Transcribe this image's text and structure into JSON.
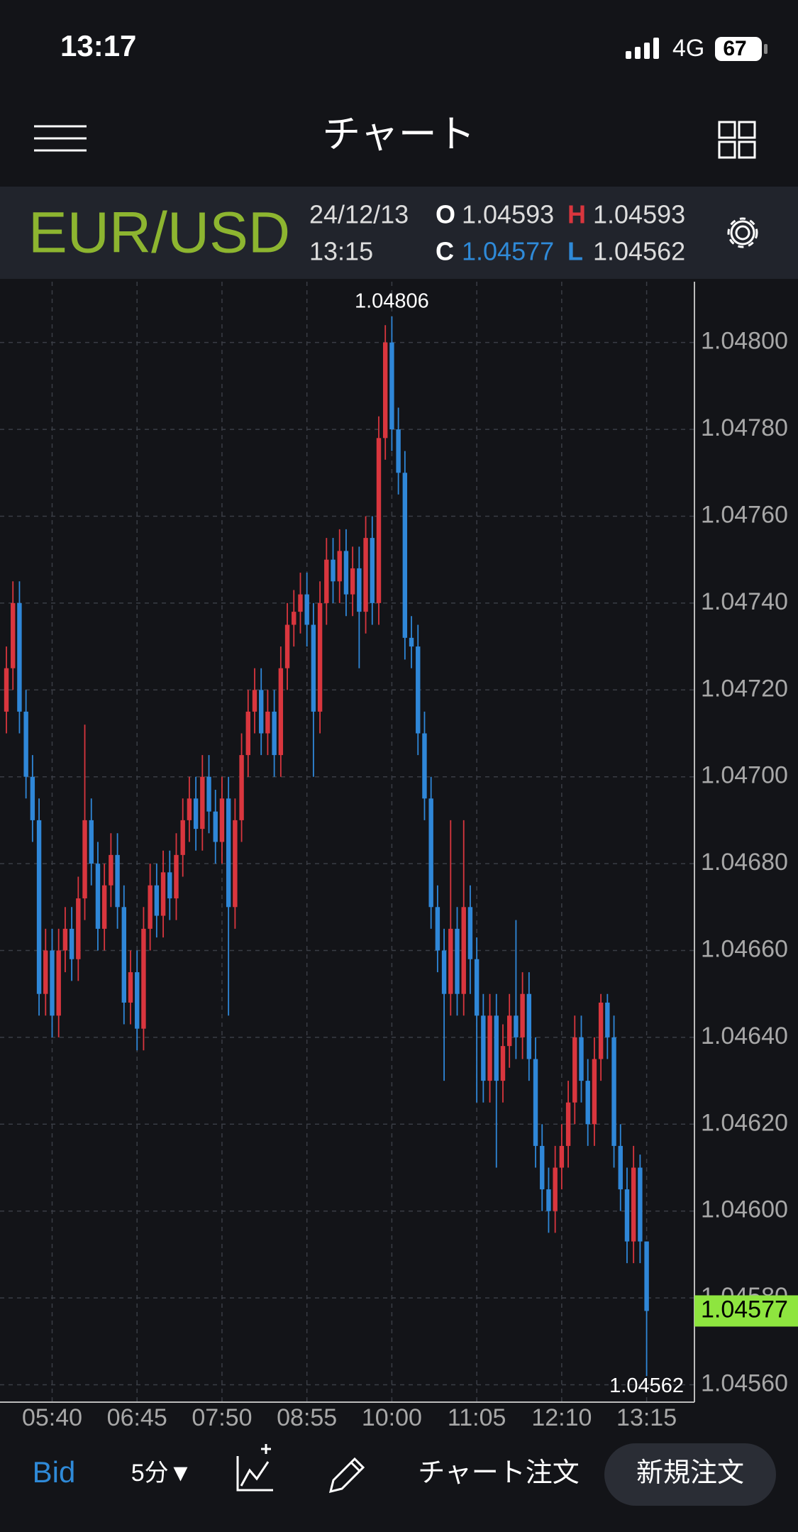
{
  "status_bar": {
    "time": "13:17",
    "network": "4G",
    "battery": "67"
  },
  "nav": {
    "title": "チャート"
  },
  "symbol_bar": {
    "pair": "EUR/USD",
    "date": "24/12/13",
    "labels": {
      "open": "O",
      "high": "H",
      "close": "C",
      "low": "L"
    }
  },
  "chart_data": {
    "type": "candlestick",
    "up_color": "#d9363e",
    "down_color": "#2f87d8",
    "grid": true,
    "last_price_color": "#8ee53f",
    "x": [
      "05:05",
      "05:10",
      "05:15",
      "05:20",
      "05:25",
      "05:30",
      "05:35",
      "05:40",
      "05:45",
      "05:50",
      "05:55",
      "06:00",
      "06:05",
      "06:10",
      "06:15",
      "06:20",
      "06:25",
      "06:30",
      "06:35",
      "06:40",
      "06:45",
      "06:50",
      "06:55",
      "07:00",
      "07:05",
      "07:10",
      "07:15",
      "07:20",
      "07:25",
      "07:30",
      "07:35",
      "07:40",
      "07:45",
      "07:50",
      "07:55",
      "08:00",
      "08:05",
      "08:10",
      "08:15",
      "08:20",
      "08:25",
      "08:30",
      "08:35",
      "08:40",
      "08:45",
      "08:50",
      "08:55",
      "09:00",
      "09:05",
      "09:10",
      "09:15",
      "09:20",
      "09:25",
      "09:30",
      "09:35",
      "09:40",
      "09:45",
      "09:50",
      "09:55",
      "10:00",
      "10:05",
      "10:10",
      "10:15",
      "10:20",
      "10:25",
      "10:30",
      "10:35",
      "10:40",
      "10:45",
      "10:50",
      "10:55",
      "11:00",
      "11:05",
      "11:10",
      "11:15",
      "11:20",
      "11:25",
      "11:30",
      "11:35",
      "11:40",
      "11:45",
      "11:50",
      "11:55",
      "12:00",
      "12:05",
      "12:10",
      "12:15",
      "12:20",
      "12:25",
      "12:30",
      "12:35",
      "12:40",
      "12:45",
      "12:50",
      "12:55",
      "13:00",
      "13:05",
      "13:10",
      "13:15"
    ],
    "open": [
      1.04715,
      1.04725,
      1.0474,
      1.04715,
      1.047,
      1.0469,
      1.0465,
      1.0466,
      1.04645,
      1.0466,
      1.04665,
      1.04658,
      1.04672,
      1.0469,
      1.0468,
      1.04665,
      1.04675,
      1.04682,
      1.0467,
      1.04648,
      1.04655,
      1.04642,
      1.04665,
      1.04675,
      1.04668,
      1.04678,
      1.04672,
      1.04682,
      1.0469,
      1.04695,
      1.04688,
      1.047,
      1.04692,
      1.04685,
      1.04695,
      1.0467,
      1.0469,
      1.04705,
      1.04715,
      1.0472,
      1.0471,
      1.04715,
      1.04705,
      1.04725,
      1.04735,
      1.04738,
      1.04742,
      1.04735,
      1.04715,
      1.0474,
      1.0475,
      1.04745,
      1.04752,
      1.04742,
      1.04748,
      1.04738,
      1.04755,
      1.0474,
      1.04778,
      1.048,
      1.0478,
      1.0477,
      1.04732,
      1.0473,
      1.0471,
      1.04695,
      1.0467,
      1.0466,
      1.0465,
      1.04665,
      1.0465,
      1.0467,
      1.04658,
      1.04645,
      1.0463,
      1.04645,
      1.0463,
      1.04638,
      1.04645,
      1.0464,
      1.0465,
      1.04635,
      1.04615,
      1.04605,
      1.046,
      1.0461,
      1.04615,
      1.04625,
      1.0464,
      1.0463,
      1.0462,
      1.04635,
      1.04648,
      1.0464,
      1.04615,
      1.04605,
      1.04593,
      1.0461,
      1.04593
    ],
    "high": [
      1.0473,
      1.04745,
      1.04745,
      1.0472,
      1.04705,
      1.04695,
      1.04665,
      1.04665,
      1.04665,
      1.0467,
      1.0467,
      1.04677,
      1.04712,
      1.04695,
      1.04685,
      1.0468,
      1.04687,
      1.04687,
      1.04675,
      1.0466,
      1.0466,
      1.0467,
      1.0468,
      1.0468,
      1.04683,
      1.04683,
      1.04687,
      1.04695,
      1.047,
      1.047,
      1.04705,
      1.04705,
      1.04697,
      1.047,
      1.047,
      1.04695,
      1.0471,
      1.0472,
      1.04725,
      1.04725,
      1.0472,
      1.0472,
      1.0473,
      1.0474,
      1.04743,
      1.04747,
      1.04747,
      1.0474,
      1.04745,
      1.04755,
      1.04755,
      1.04757,
      1.04757,
      1.04753,
      1.04753,
      1.0476,
      1.0476,
      1.04783,
      1.04804,
      1.04806,
      1.04785,
      1.04775,
      1.04737,
      1.04735,
      1.04715,
      1.047,
      1.04675,
      1.04665,
      1.0469,
      1.0467,
      1.0469,
      1.04675,
      1.04663,
      1.0465,
      1.0465,
      1.0465,
      1.04643,
      1.0465,
      1.04667,
      1.04655,
      1.04655,
      1.0464,
      1.0462,
      1.0461,
      1.04615,
      1.0462,
      1.0463,
      1.04645,
      1.04645,
      1.04635,
      1.0464,
      1.0465,
      1.0465,
      1.04645,
      1.0462,
      1.0461,
      1.04615,
      1.04613,
      1.04593
    ],
    "low": [
      1.0471,
      1.0472,
      1.0471,
      1.04695,
      1.04685,
      1.04645,
      1.04645,
      1.0464,
      1.0464,
      1.04655,
      1.04653,
      1.04653,
      1.04667,
      1.04675,
      1.0466,
      1.0466,
      1.0467,
      1.04665,
      1.04643,
      1.04643,
      1.04637,
      1.04637,
      1.0466,
      1.04663,
      1.04663,
      1.04667,
      1.04667,
      1.04677,
      1.04685,
      1.04683,
      1.04683,
      1.04687,
      1.0468,
      1.0468,
      1.04645,
      1.04665,
      1.04685,
      1.047,
      1.0471,
      1.04705,
      1.04705,
      1.047,
      1.047,
      1.0472,
      1.0473,
      1.04733,
      1.0473,
      1.047,
      1.0471,
      1.04735,
      1.0474,
      1.0474,
      1.04737,
      1.04737,
      1.04725,
      1.04733,
      1.04735,
      1.04735,
      1.04773,
      1.04775,
      1.04765,
      1.04727,
      1.04725,
      1.04705,
      1.0469,
      1.04665,
      1.04655,
      1.0463,
      1.04645,
      1.04645,
      1.04645,
      1.0465,
      1.04625,
      1.04625,
      1.04625,
      1.0461,
      1.04625,
      1.04633,
      1.04635,
      1.04635,
      1.0463,
      1.0461,
      1.046,
      1.04595,
      1.04595,
      1.04605,
      1.0461,
      1.0462,
      1.04625,
      1.04615,
      1.04615,
      1.0463,
      1.04635,
      1.0461,
      1.046,
      1.04588,
      1.04588,
      1.04588,
      1.04562
    ],
    "close": [
      1.04725,
      1.0474,
      1.04715,
      1.047,
      1.0469,
      1.0465,
      1.0466,
      1.04645,
      1.0466,
      1.04665,
      1.04658,
      1.04672,
      1.0469,
      1.0468,
      1.04665,
      1.04675,
      1.04682,
      1.0467,
      1.04648,
      1.04655,
      1.04642,
      1.04665,
      1.04675,
      1.04668,
      1.04678,
      1.04672,
      1.04682,
      1.0469,
      1.04695,
      1.04688,
      1.047,
      1.04692,
      1.04685,
      1.04695,
      1.0467,
      1.0469,
      1.04705,
      1.04715,
      1.0472,
      1.0471,
      1.04715,
      1.04705,
      1.04725,
      1.04735,
      1.04738,
      1.04742,
      1.04735,
      1.04715,
      1.0474,
      1.0475,
      1.04745,
      1.04752,
      1.04742,
      1.04748,
      1.04738,
      1.04755,
      1.0474,
      1.04778,
      1.048,
      1.0478,
      1.0477,
      1.04732,
      1.0473,
      1.0471,
      1.04695,
      1.0467,
      1.0466,
      1.0465,
      1.04665,
      1.0465,
      1.0467,
      1.04658,
      1.04645,
      1.0463,
      1.04645,
      1.0463,
      1.04638,
      1.04645,
      1.0464,
      1.0465,
      1.04635,
      1.04615,
      1.04605,
      1.046,
      1.0461,
      1.04615,
      1.04625,
      1.0464,
      1.0463,
      1.0462,
      1.04635,
      1.04648,
      1.0464,
      1.04615,
      1.04605,
      1.04593,
      1.0461,
      1.04593,
      1.04577
    ],
    "ylim": [
      1.04556,
      1.04814
    ],
    "yticks": [
      {
        "value": 1.0456,
        "label": "1.04560"
      },
      {
        "value": 1.0458,
        "label": "1.04580"
      },
      {
        "value": 1.046,
        "label": "1.04600"
      },
      {
        "value": 1.0462,
        "label": "1.04620"
      },
      {
        "value": 1.0464,
        "label": "1.04640"
      },
      {
        "value": 1.0466,
        "label": "1.04660"
      },
      {
        "value": 1.0468,
        "label": "1.04680"
      },
      {
        "value": 1.047,
        "label": "1.04700"
      },
      {
        "value": 1.0472,
        "label": "1.04720"
      },
      {
        "value": 1.0474,
        "label": "1.04740"
      },
      {
        "value": 1.0476,
        "label": "1.04760"
      },
      {
        "value": 1.0478,
        "label": "1.04780"
      },
      {
        "value": 1.048,
        "label": "1.04800"
      }
    ],
    "xticks": [
      "05:40",
      "06:45",
      "07:50",
      "08:55",
      "10:00",
      "11:05",
      "12:10",
      "13:15"
    ]
  },
  "toolbar": {
    "price_side": "Bid",
    "interval": "5分▼",
    "chart_order": "チャート注文",
    "new_order": "新規注文"
  }
}
